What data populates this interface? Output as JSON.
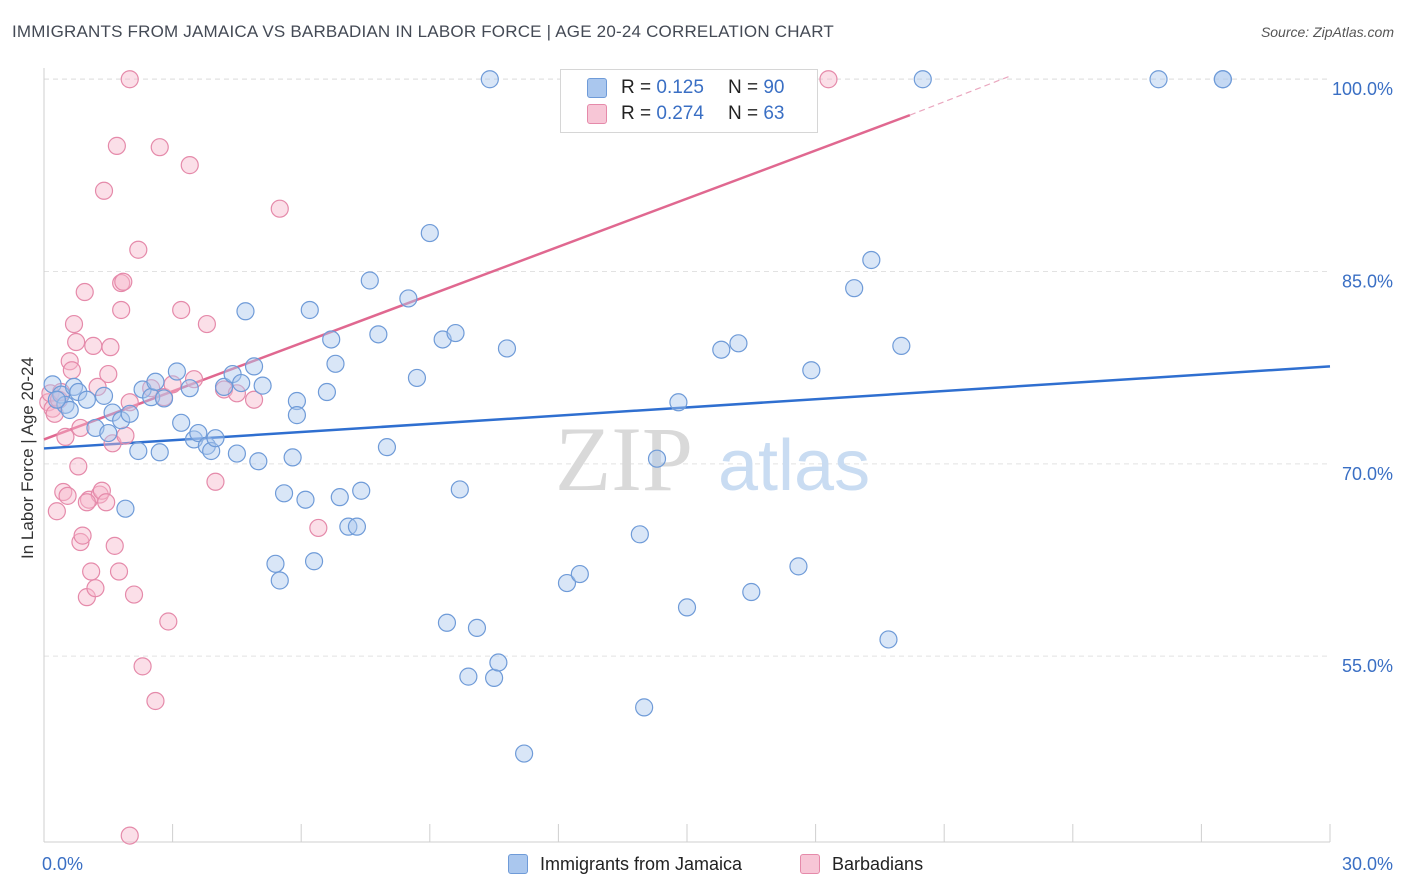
{
  "title": "IMMIGRANTS FROM JAMAICA VS BARBADIAN IN LABOR FORCE | AGE 20-24 CORRELATION CHART",
  "source": "Source: ZipAtlas.com",
  "watermark": {
    "zip": "ZIP",
    "atlas": "atlas"
  },
  "legend": {
    "r_label": "R =",
    "n_label": "N =",
    "series": [
      {
        "name": "Immigrants from Jamaica",
        "r": "0.125",
        "n": "90",
        "color": "#aac7ee",
        "stroke": "#6f9bd8"
      },
      {
        "name": "Barbadians",
        "r": "0.274",
        "n": "63",
        "color": "#f7b9cd",
        "stroke": "#e58aaa"
      }
    ]
  },
  "chart_data": {
    "type": "scatter",
    "title": "IMMIGRANTS FROM JAMAICA VS BARBADIAN IN LABOR FORCE | AGE 20-24 CORRELATION CHART",
    "xlabel": "",
    "ylabel": "In Labor Force | Age 20-24",
    "x_unit": "%",
    "y_unit": "%",
    "xlim": [
      0,
      30
    ],
    "ylim": [
      40.5,
      101.5
    ],
    "x_tick_labels": [
      "0.0%",
      "30.0%"
    ],
    "y_ticks": [
      55,
      70,
      85,
      100
    ],
    "y_tick_labels": [
      "55.0%",
      "70.0%",
      "85.0%",
      "100.0%"
    ],
    "grid": true,
    "legend_position": "top-center",
    "series": [
      {
        "name": "Immigrants from Jamaica",
        "color": "#6f9bd8",
        "trend": {
          "x": [
            0,
            30
          ],
          "y": [
            71.2,
            77.6
          ],
          "color": "#2f6fd0"
        },
        "points": [
          [
            0.2,
            76.2
          ],
          [
            0.4,
            75.4
          ],
          [
            0.5,
            74.6
          ],
          [
            0.6,
            74.2
          ],
          [
            0.7,
            76.0
          ],
          [
            0.8,
            75.6
          ],
          [
            1.0,
            75.0
          ],
          [
            1.2,
            72.8
          ],
          [
            1.4,
            75.3
          ],
          [
            1.5,
            72.4
          ],
          [
            1.6,
            74.0
          ],
          [
            1.8,
            73.4
          ],
          [
            1.9,
            66.5
          ],
          [
            2.0,
            73.9
          ],
          [
            2.2,
            71.0
          ],
          [
            2.3,
            75.8
          ],
          [
            2.5,
            75.2
          ],
          [
            2.6,
            76.4
          ],
          [
            2.7,
            70.9
          ],
          [
            2.8,
            75.1
          ],
          [
            3.1,
            77.2
          ],
          [
            3.2,
            73.2
          ],
          [
            3.4,
            75.9
          ],
          [
            3.5,
            71.9
          ],
          [
            3.6,
            72.4
          ],
          [
            3.8,
            71.4
          ],
          [
            3.9,
            71.0
          ],
          [
            4.0,
            72.0
          ],
          [
            4.2,
            76.0
          ],
          [
            4.4,
            77.0
          ],
          [
            4.5,
            70.8
          ],
          [
            4.6,
            76.3
          ],
          [
            4.7,
            81.9
          ],
          [
            4.9,
            77.6
          ],
          [
            5.0,
            70.2
          ],
          [
            5.1,
            76.1
          ],
          [
            5.4,
            62.2
          ],
          [
            5.5,
            60.9
          ],
          [
            5.6,
            67.7
          ],
          [
            5.8,
            70.5
          ],
          [
            5.9,
            74.9
          ],
          [
            5.9,
            73.8
          ],
          [
            6.1,
            67.2
          ],
          [
            6.2,
            82.0
          ],
          [
            6.3,
            62.4
          ],
          [
            6.6,
            75.6
          ],
          [
            6.7,
            79.7
          ],
          [
            6.8,
            77.8
          ],
          [
            6.9,
            67.4
          ],
          [
            7.1,
            65.1
          ],
          [
            7.3,
            65.1
          ],
          [
            7.4,
            67.9
          ],
          [
            7.6,
            84.3
          ],
          [
            7.8,
            80.1
          ],
          [
            8.0,
            71.3
          ],
          [
            8.5,
            82.9
          ],
          [
            8.7,
            76.7
          ],
          [
            9.0,
            88.0
          ],
          [
            9.3,
            79.7
          ],
          [
            9.4,
            57.6
          ],
          [
            9.6,
            80.2
          ],
          [
            9.7,
            68.0
          ],
          [
            9.9,
            53.4
          ],
          [
            10.1,
            57.2
          ],
          [
            10.4,
            100.0
          ],
          [
            10.5,
            53.3
          ],
          [
            10.6,
            54.5
          ],
          [
            10.8,
            79.0
          ],
          [
            11.2,
            47.4
          ],
          [
            12.2,
            60.7
          ],
          [
            12.5,
            61.4
          ],
          [
            13.9,
            64.5
          ],
          [
            14.0,
            51.0
          ],
          [
            14.3,
            70.4
          ],
          [
            14.8,
            74.8
          ],
          [
            15.0,
            58.8
          ],
          [
            15.8,
            78.9
          ],
          [
            16.2,
            79.4
          ],
          [
            16.5,
            60.0
          ],
          [
            17.6,
            62.0
          ],
          [
            17.9,
            77.3
          ],
          [
            18.9,
            83.7
          ],
          [
            19.3,
            85.9
          ],
          [
            19.7,
            56.3
          ],
          [
            20.0,
            79.2
          ],
          [
            20.5,
            100.0
          ],
          [
            26.0,
            100.0
          ],
          [
            27.5,
            100.0
          ],
          [
            27.5,
            100.0
          ],
          [
            0.3,
            75.0
          ]
        ]
      },
      {
        "name": "Barbadians",
        "color": "#e58aaa",
        "trend": {
          "x": [
            0,
            20.2
          ],
          "y": [
            71.9,
            97.2
          ],
          "color": "#e06890",
          "dashed_extension": {
            "x": [
              20.2,
              22.5
            ],
            "y": [
              97.2,
              100.2
            ]
          }
        },
        "points": [
          [
            0.1,
            74.8
          ],
          [
            0.15,
            75.5
          ],
          [
            0.2,
            74.3
          ],
          [
            0.25,
            73.9
          ],
          [
            0.3,
            66.3
          ],
          [
            0.35,
            75.0
          ],
          [
            0.4,
            75.6
          ],
          [
            0.45,
            67.8
          ],
          [
            0.5,
            72.1
          ],
          [
            0.55,
            67.5
          ],
          [
            0.6,
            78.0
          ],
          [
            0.65,
            77.3
          ],
          [
            0.7,
            80.9
          ],
          [
            0.75,
            79.5
          ],
          [
            0.8,
            69.8
          ],
          [
            0.85,
            72.8
          ],
          [
            0.85,
            63.9
          ],
          [
            0.9,
            64.4
          ],
          [
            0.95,
            83.4
          ],
          [
            1.0,
            59.6
          ],
          [
            1.05,
            67.2
          ],
          [
            1.1,
            61.6
          ],
          [
            1.15,
            79.2
          ],
          [
            1.2,
            60.3
          ],
          [
            1.25,
            76.0
          ],
          [
            1.3,
            67.6
          ],
          [
            1.35,
            67.9
          ],
          [
            1.4,
            91.3
          ],
          [
            1.45,
            67.0
          ],
          [
            1.5,
            77.0
          ],
          [
            1.55,
            79.1
          ],
          [
            1.6,
            71.6
          ],
          [
            1.65,
            63.6
          ],
          [
            1.7,
            94.8
          ],
          [
            1.75,
            61.6
          ],
          [
            1.8,
            82.0
          ],
          [
            1.8,
            84.1
          ],
          [
            1.85,
            84.2
          ],
          [
            1.9,
            72.2
          ],
          [
            2.0,
            74.8
          ],
          [
            2.1,
            59.8
          ],
          [
            2.2,
            86.7
          ],
          [
            2.3,
            54.2
          ],
          [
            2.5,
            75.9
          ],
          [
            2.6,
            51.5
          ],
          [
            2.7,
            94.7
          ],
          [
            2.8,
            75.2
          ],
          [
            2.9,
            57.7
          ],
          [
            3.0,
            76.2
          ],
          [
            3.2,
            82.0
          ],
          [
            3.4,
            93.3
          ],
          [
            3.5,
            76.6
          ],
          [
            3.8,
            80.9
          ],
          [
            4.0,
            68.6
          ],
          [
            4.2,
            75.8
          ],
          [
            4.5,
            75.5
          ],
          [
            4.9,
            75.0
          ],
          [
            5.5,
            89.9
          ],
          [
            2.0,
            100.0
          ],
          [
            2.0,
            41.0
          ],
          [
            6.4,
            65.0
          ],
          [
            18.3,
            100.0
          ],
          [
            1.0,
            67.0
          ]
        ]
      }
    ]
  }
}
